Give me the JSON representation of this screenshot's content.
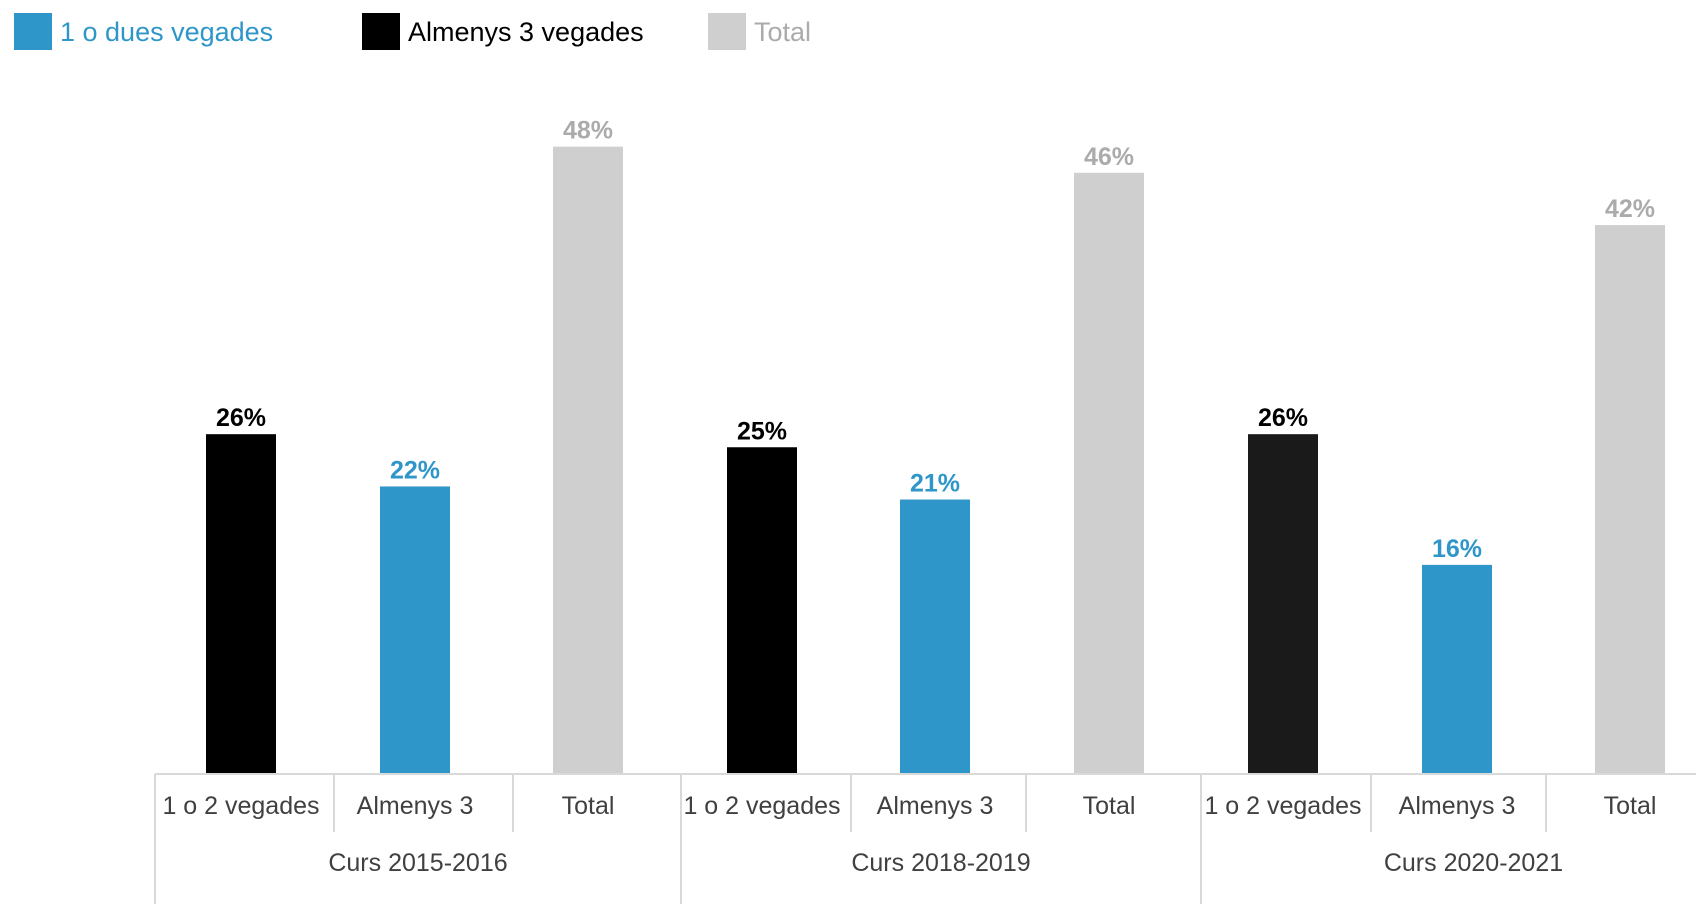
{
  "chart_data": {
    "type": "bar",
    "legend": [
      {
        "label": "1 o dues vegades",
        "color": "#2E96C8"
      },
      {
        "label": "Almenys 3 vegades",
        "color": "#000000"
      },
      {
        "label": "Total",
        "color": "#D0CFD0"
      }
    ],
    "legend_position": "top-left",
    "groups": [
      {
        "name": "Curs 2015-2016",
        "bars": [
          {
            "category": "1 o 2 vegades",
            "value": 26,
            "label": "26%",
            "color": "#000000"
          },
          {
            "category": "Almenys 3",
            "value": 22,
            "label": "22%",
            "color": "#2E96C8"
          },
          {
            "category": "Total",
            "value": 48,
            "label": "48%",
            "color": "#D0CFD0"
          }
        ]
      },
      {
        "name": "Curs 2018-2019",
        "bars": [
          {
            "category": "1 o 2 vegades",
            "value": 25,
            "label": "25%",
            "color": "#000000"
          },
          {
            "category": "Almenys 3",
            "value": 21,
            "label": "21%",
            "color": "#2E96C8"
          },
          {
            "category": "Total",
            "value": 46,
            "label": "46%",
            "color": "#D0CFD0"
          }
        ]
      },
      {
        "name": "Curs 2020-2021",
        "bars": [
          {
            "category": "1 o 2 vegades",
            "value": 26,
            "label": "26%",
            "color": "#1A1A1A"
          },
          {
            "category": "Almenys 3",
            "value": 16,
            "label": "16%",
            "color": "#2E96C8"
          },
          {
            "category": "Total",
            "value": 42,
            "label": "42%",
            "color": "#D0CFD0"
          }
        ]
      }
    ],
    "label_colors": {
      "black": "#000000",
      "blue": "#2E96C8",
      "gray": "#ABABAB"
    },
    "ylim": [
      0,
      50
    ],
    "grid": false
  }
}
